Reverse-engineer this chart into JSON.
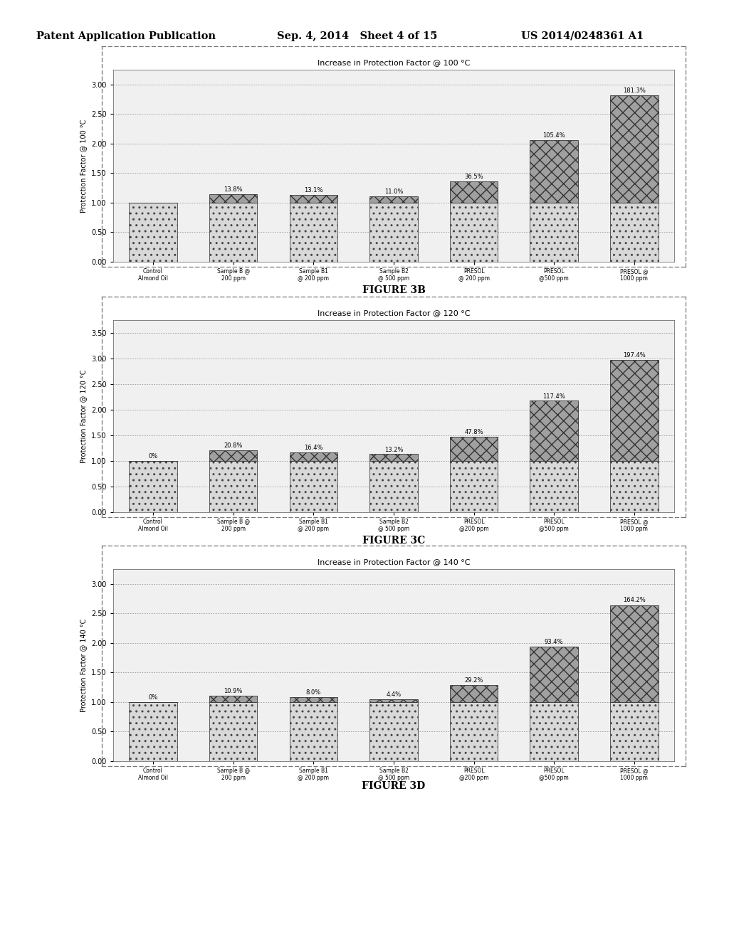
{
  "header_left": "Patent Application Publication",
  "header_mid": "Sep. 4, 2014   Sheet 4 of 15",
  "header_right": "US 2014/0248361 A1",
  "charts": [
    {
      "title": "Increase in Protection Factor @ 100 °C",
      "ylabel": "Protection Factor @ 100 °C",
      "figure_label": "FIGURE 3B",
      "ylim": [
        0,
        3.25
      ],
      "yticks": [
        0.0,
        0.5,
        1.0,
        1.5,
        2.0,
        2.5,
        3.0
      ],
      "ytick_labels": [
        "0.00",
        "0.50",
        "1.00",
        "1.50",
        "2.00",
        "2.50",
        "3.00"
      ],
      "categories": [
        "Control\nAlmond Oil",
        "Sample B @\n200 ppm",
        "Sample B1\n@ 200 ppm",
        "Sample B2\n@ 500 ppm",
        "PRESOL\n@ 200 ppm",
        "PRESOL\n@500 ppm",
        "PRESOL @\n1000 ppm"
      ],
      "base_values": [
        1.0,
        1.0,
        1.0,
        1.0,
        1.0,
        1.0,
        1.0
      ],
      "extra_values": [
        0.0,
        0.138,
        0.131,
        0.11,
        0.365,
        1.054,
        1.813
      ],
      "pct_labels": [
        "",
        "13.8%",
        "13.1%",
        "11.0%",
        "36.5%",
        "105.4%",
        "181.3%"
      ]
    },
    {
      "title": "Increase in Protection Factor @ 120 °C",
      "ylabel": "Protection Factor @ 120 °C",
      "figure_label": "FIGURE 3C",
      "ylim": [
        0,
        3.75
      ],
      "yticks": [
        0.0,
        0.5,
        1.0,
        1.5,
        2.0,
        2.5,
        3.0,
        3.5
      ],
      "ytick_labels": [
        "0.00",
        "0.50",
        "1.00",
        "1.50",
        "2.00",
        "2.50",
        "3.00",
        "3.50"
      ],
      "categories": [
        "Control\nAlmond Oil",
        "Sample B @\n200 ppm",
        "Sample B1\n@ 200 ppm",
        "Sample B2\n@ 500 ppm",
        "PRESOL\n@200 ppm",
        "PRESOL\n@500 ppm",
        "PRESOL @\n1000 ppm"
      ],
      "base_values": [
        1.0,
        1.0,
        1.0,
        1.0,
        1.0,
        1.0,
        1.0
      ],
      "extra_values": [
        0.0,
        0.208,
        0.164,
        0.132,
        0.478,
        1.174,
        1.974
      ],
      "pct_labels": [
        "0%",
        "20.8%",
        "16.4%",
        "13.2%",
        "47.8%",
        "117.4%",
        "197.4%"
      ]
    },
    {
      "title": "Increase in Protection Factor @ 140 °C",
      "ylabel": "Protection Factor @ 140 °C",
      "figure_label": "FIGURE 3D",
      "ylim": [
        0,
        3.25
      ],
      "yticks": [
        0.0,
        0.5,
        1.0,
        1.5,
        2.0,
        2.5,
        3.0
      ],
      "ytick_labels": [
        "0.00",
        "0.50",
        "1.00",
        "1.50",
        "2.00",
        "2.50",
        "3.00"
      ],
      "categories": [
        "Control\nAlmond Oil",
        "Sample B @\n200 ppm",
        "Sample B1\n@ 200 ppm",
        "Sample B2\n@ 500 ppm",
        "PRESOL\n@200 ppm",
        "PRESOL\n@500 ppm",
        "PRESOL @\n1000 ppm"
      ],
      "base_values": [
        1.0,
        1.0,
        1.0,
        1.0,
        1.0,
        1.0,
        1.0
      ],
      "extra_values": [
        0.0,
        0.109,
        0.08,
        0.044,
        0.292,
        0.934,
        1.642
      ],
      "pct_labels": [
        "0%",
        "10.9%",
        "8.0%",
        "4.4%",
        "29.2%",
        "93.4%",
        "164.2%"
      ]
    }
  ],
  "bg_color": "#ffffff",
  "chart_bg": "#f0f0f0",
  "grid_color": "#999999",
  "border_color": "#888888"
}
